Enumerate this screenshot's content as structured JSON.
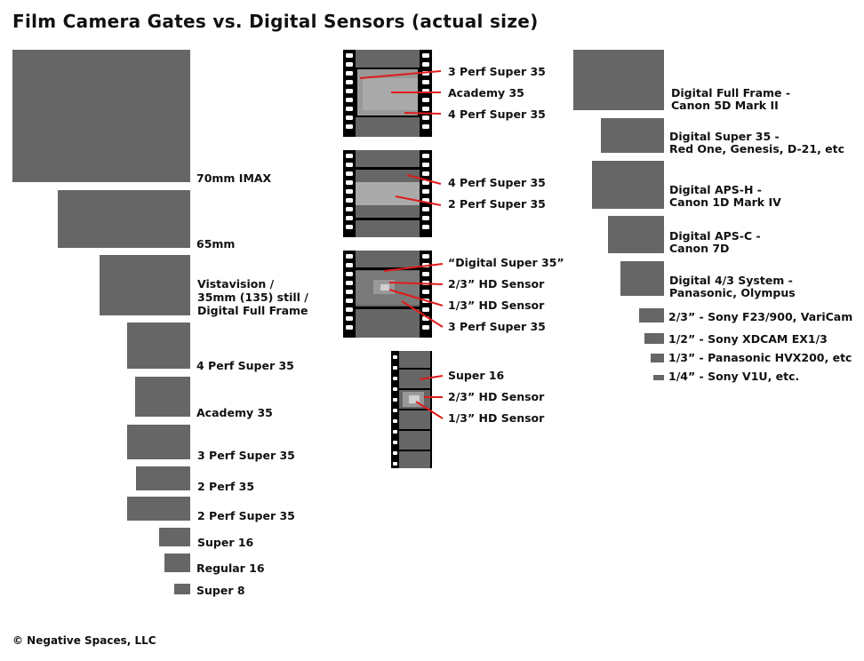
{
  "title": "Film Camera Gates vs. Digital Sensors (actual size)",
  "copyright": "© Negative Spaces, LLC",
  "colors": {
    "gate": "#666666",
    "inner_light": "#aaaaaa",
    "film_black": "#000000",
    "callout": "#e01b1b",
    "sprocket": "#ffffff"
  },
  "film_gates": [
    {
      "lines": [
        "70mm IMAX"
      ]
    },
    {
      "lines": [
        "65mm"
      ]
    },
    {
      "lines": [
        "Vistavision /",
        "35mm (135) still /",
        "Digital Full Frame"
      ]
    },
    {
      "lines": [
        "4 Perf Super 35"
      ]
    },
    {
      "lines": [
        "Academy 35"
      ]
    },
    {
      "lines": [
        "3 Perf Super 35"
      ]
    },
    {
      "lines": [
        "2 Perf 35"
      ]
    },
    {
      "lines": [
        "2 Perf Super 35"
      ]
    },
    {
      "lines": [
        "Super 16"
      ]
    },
    {
      "lines": [
        "Regular 16"
      ]
    },
    {
      "lines": [
        "Super 8"
      ]
    }
  ],
  "filmstrip_1": {
    "labels": [
      "3 Perf Super 35",
      "Academy 35",
      "4 Perf Super 35"
    ]
  },
  "filmstrip_2": {
    "labels": [
      "4 Perf Super 35",
      "2 Perf Super 35"
    ]
  },
  "filmstrip_3": {
    "labels": [
      "“Digital Super 35”",
      "2/3” HD Sensor",
      "1/3” HD Sensor",
      "3 Perf Super 35"
    ]
  },
  "filmstrip_4": {
    "labels": [
      "Super 16",
      "2/3” HD Sensor",
      "1/3” HD Sensor"
    ]
  },
  "digital_sensors": [
    {
      "lines": [
        "Digital Full Frame -",
        "Canon 5D Mark II"
      ]
    },
    {
      "lines": [
        "Digital Super 35 -",
        "Red One, Genesis, D-21, etc"
      ]
    },
    {
      "lines": [
        "Digital APS-H -",
        "Canon 1D Mark IV"
      ]
    },
    {
      "lines": [
        "Digital APS-C -",
        "Canon 7D"
      ]
    },
    {
      "lines": [
        "Digital 4/3 System -",
        "Panasonic, Olympus"
      ]
    },
    {
      "lines": [
        "2/3” - Sony F23/900, VariCam"
      ]
    },
    {
      "lines": [
        "1/2” - Sony XDCAM EX1/3"
      ]
    },
    {
      "lines": [
        "1/3” - Panasonic HVX200, etc"
      ]
    },
    {
      "lines": [
        "1/4” - Sony V1U, etc."
      ]
    }
  ]
}
